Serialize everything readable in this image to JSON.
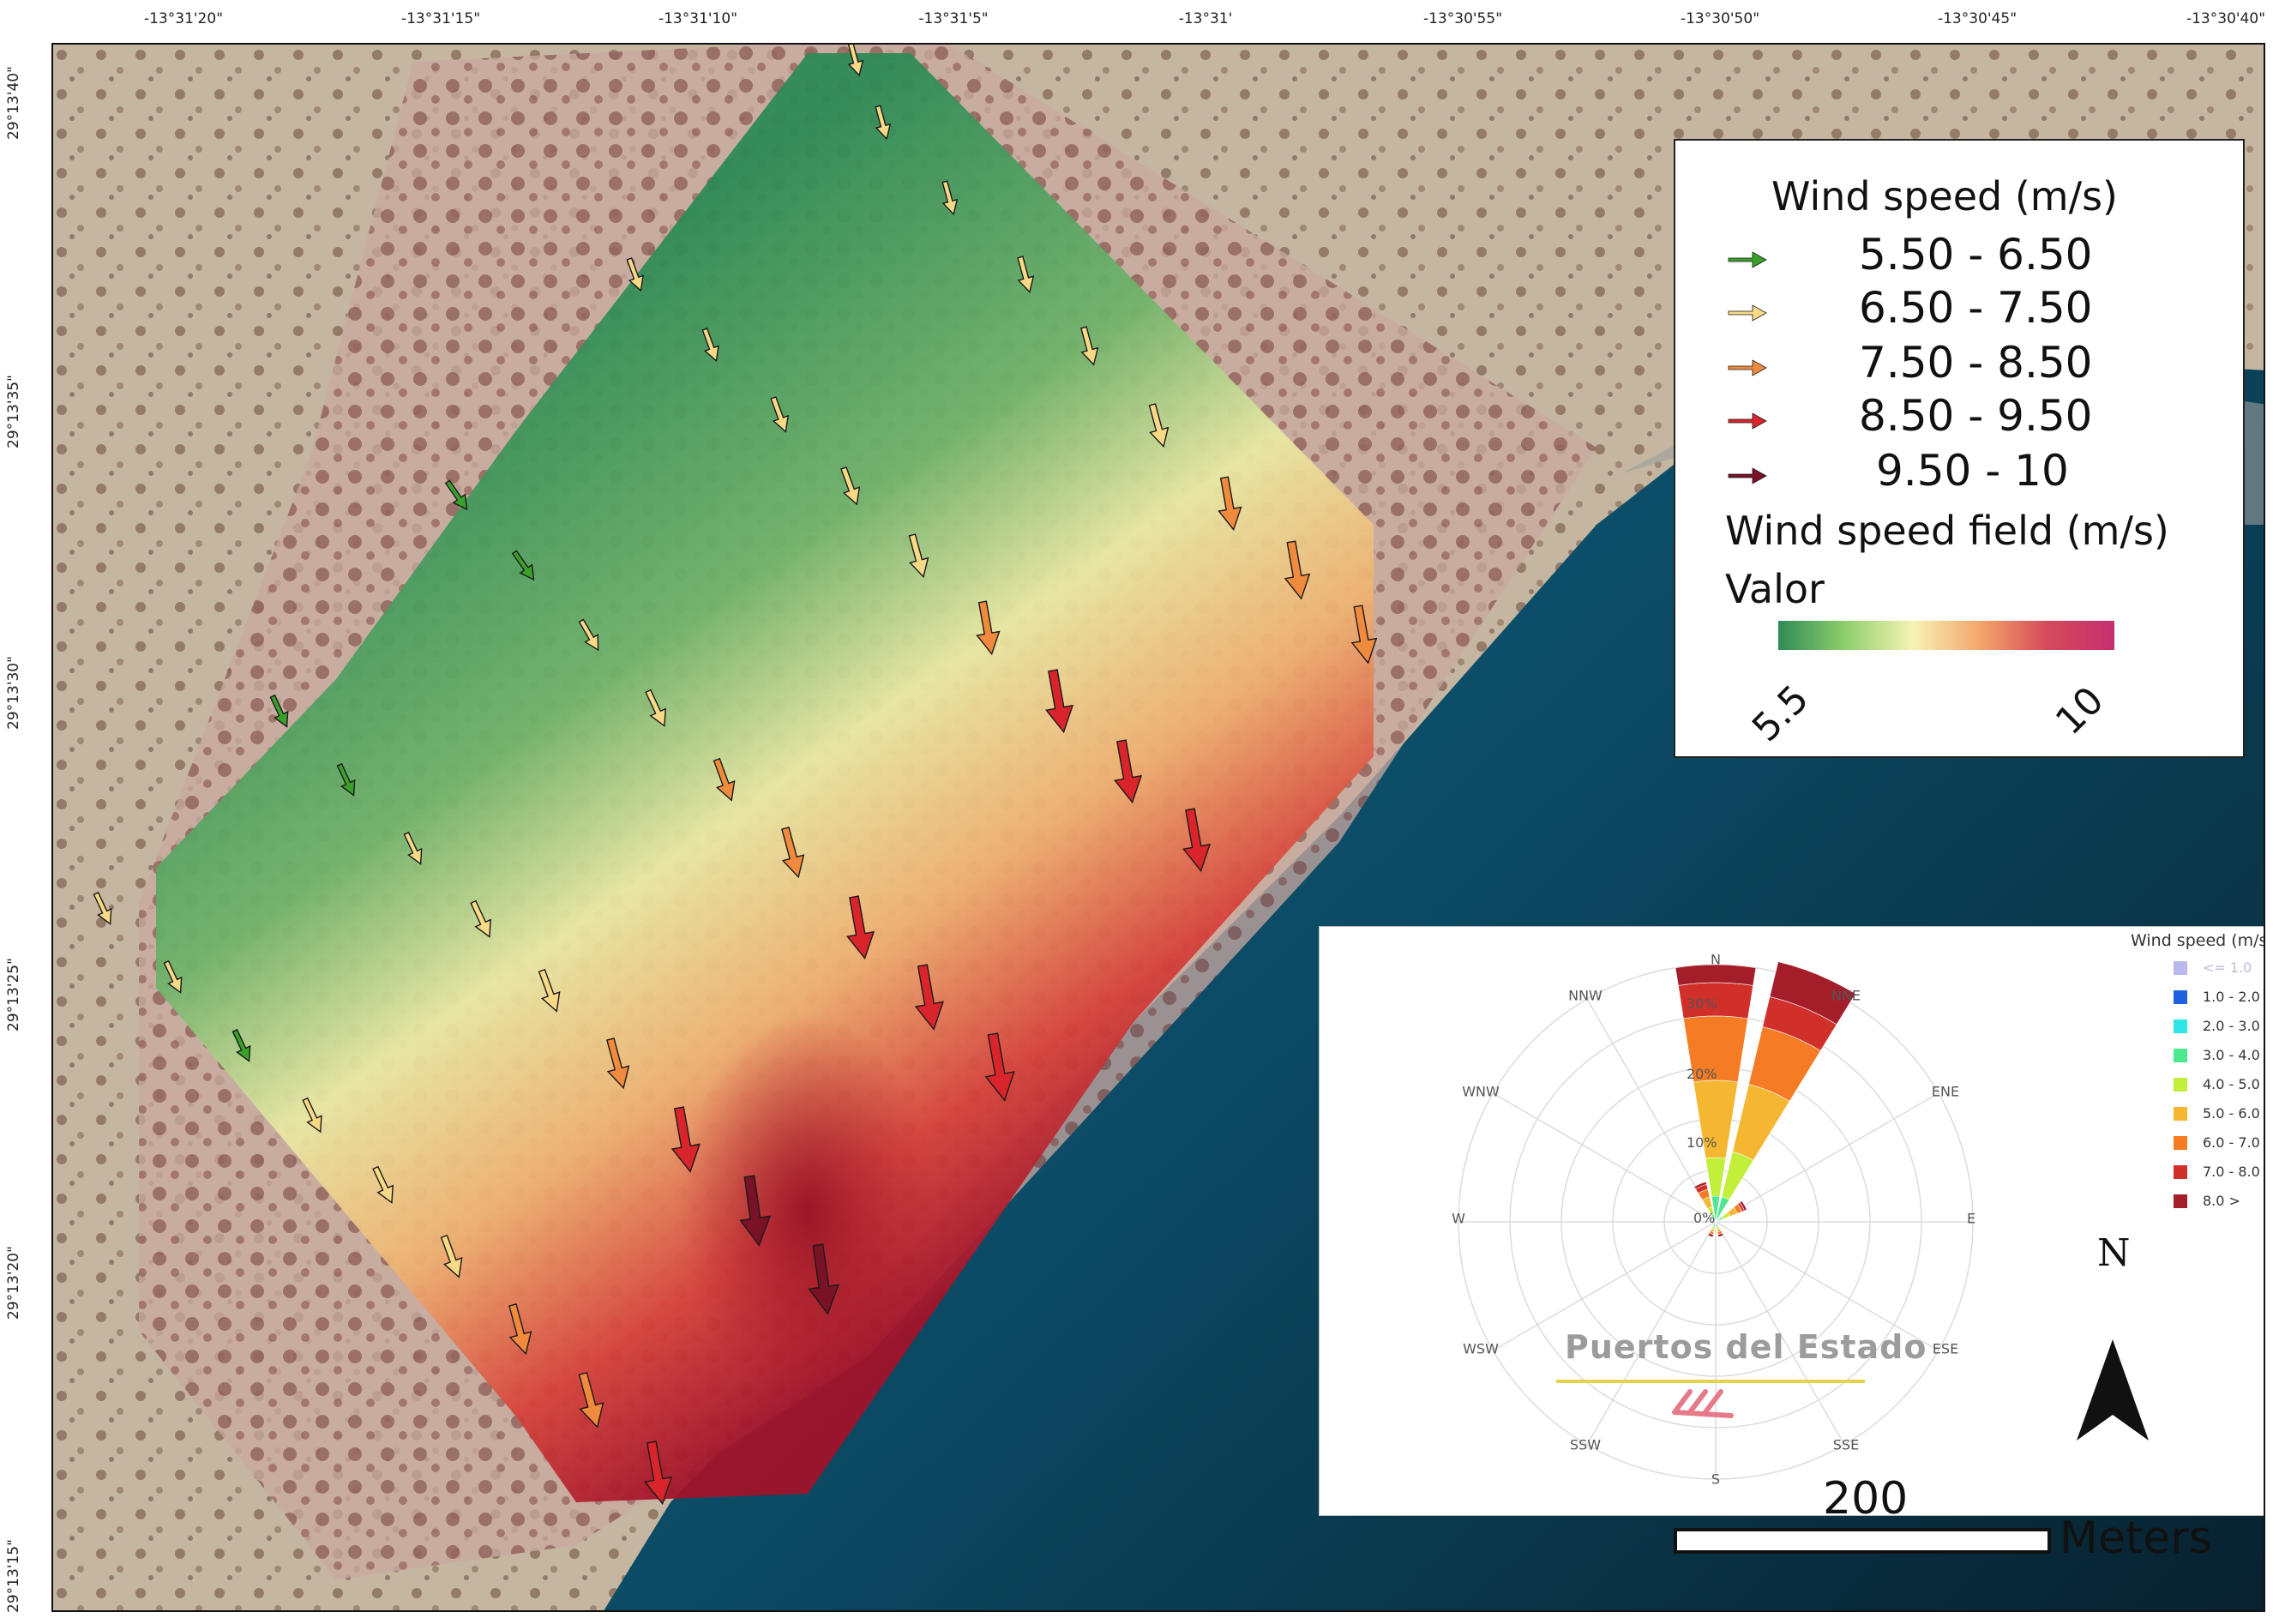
{
  "map": {
    "top_coords": [
      "-13°31'20\"",
      "-13°31'15\"",
      "-13°31'10\"",
      "-13°31'5\"",
      "-13°31'",
      "-13°30'55\"",
      "-13°30'50\"",
      "-13°30'45\"",
      "-13°30'40\""
    ],
    "left_coords": [
      "29°13'40\"",
      "29°13'35\"",
      "29°13'30\"",
      "29°13'25\"",
      "29°13'20\"",
      "29°13'15\""
    ],
    "colors": {
      "green": "#3aa02a",
      "yellow": "#f7d986",
      "orange": "#f08a3c",
      "red": "#d8242a",
      "darkred": "#7a1226"
    }
  },
  "legend": {
    "title": "Wind speed (m/s)",
    "classes": [
      {
        "range": "5.50 - 6.50",
        "color": "#3aa02a"
      },
      {
        "range": "6.50 - 7.50",
        "color": "#f7d986"
      },
      {
        "range": "7.50 - 8.50",
        "color": "#f08a3c"
      },
      {
        "range": "8.50 - 9.50",
        "color": "#d8242a"
      },
      {
        "range": "9.50 - 10",
        "color": "#7a1226"
      }
    ],
    "field_title": "Wind speed field (m/s)",
    "value_label": "Valor",
    "ramp_min": "5.5",
    "ramp_max": "10"
  },
  "rose": {
    "directions": [
      "N",
      "NNE",
      "ENE",
      "E",
      "ESE",
      "SSE",
      "S",
      "SSW",
      "WSW",
      "W",
      "WNW",
      "NNW"
    ],
    "pct_labels": [
      "0%",
      "10%",
      "20%",
      "30%"
    ],
    "legend_title": "Wind speed (m/s)",
    "legend_items": [
      {
        "label": "<= 1.0",
        "color": "#b9b9ee"
      },
      {
        "label": "1.0 - 2.0",
        "color": "#1f5fe0"
      },
      {
        "label": "2.0 - 3.0",
        "color": "#2ee6e6"
      },
      {
        "label": "3.0 - 4.0",
        "color": "#4ee890"
      },
      {
        "label": "4.0 - 5.0",
        "color": "#c2ef3a"
      },
      {
        "label": "5.0 - 6.0",
        "color": "#f5b731"
      },
      {
        "label": "6.0 - 7.0",
        "color": "#f57c24"
      },
      {
        "label": "7.0 - 8.0",
        "color": "#d12f2a"
      },
      {
        "label": "8.0 >",
        "color": "#a41e2a"
      }
    ],
    "watermark": "Puertos del Estado"
  },
  "north_label": "N",
  "scale": {
    "value": "200",
    "unit": "Meters"
  }
}
